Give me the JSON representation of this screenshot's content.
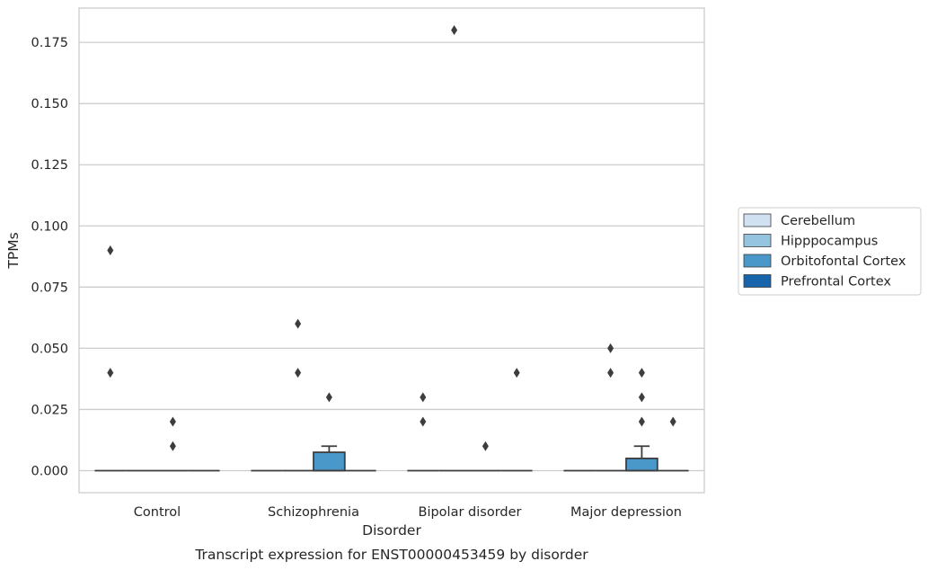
{
  "caption": "Transcript expression for ENST00000453459 by disorder",
  "chart_data": {
    "type": "box",
    "title": "",
    "xlabel": "Disorder",
    "ylabel": "TPMs",
    "ylim": [
      -0.009,
      0.189
    ],
    "yticks": [
      "0.000",
      "0.025",
      "0.050",
      "0.075",
      "0.100",
      "0.125",
      "0.150",
      "0.175"
    ],
    "ytick_values": [
      0,
      0.025,
      0.05,
      0.075,
      0.1,
      0.125,
      0.15,
      0.175
    ],
    "grid": "horizontal",
    "legend_position": "right",
    "categories": [
      "Control",
      "Schizophrenia",
      "Bipolar disorder",
      "Major depression"
    ],
    "series": [
      {
        "name": "Cerebellum",
        "color": "#d0e1f2",
        "boxes": [
          {
            "q1": 0,
            "median": 0,
            "q3": 0,
            "whisker_low": 0,
            "whisker_high": 0,
            "outliers": [
              0.09,
              0.04
            ]
          },
          {
            "q1": 0,
            "median": 0,
            "q3": 0,
            "whisker_low": 0,
            "whisker_high": 0,
            "outliers": []
          },
          {
            "q1": 0,
            "median": 0,
            "q3": 0,
            "whisker_low": 0,
            "whisker_high": 0,
            "outliers": [
              0.03,
              0.02
            ]
          },
          {
            "q1": 0,
            "median": 0,
            "q3": 0,
            "whisker_low": 0,
            "whisker_high": 0,
            "outliers": []
          }
        ]
      },
      {
        "name": "Hipppocampus",
        "color": "#94c4df",
        "boxes": [
          {
            "q1": 0,
            "median": 0,
            "q3": 0,
            "whisker_low": 0,
            "whisker_high": 0,
            "outliers": []
          },
          {
            "q1": 0,
            "median": 0,
            "q3": 0,
            "whisker_low": 0,
            "whisker_high": 0,
            "outliers": [
              0.06,
              0.04
            ]
          },
          {
            "q1": 0,
            "median": 0,
            "q3": 0,
            "whisker_low": 0,
            "whisker_high": 0,
            "outliers": [
              0.18
            ]
          },
          {
            "q1": 0,
            "median": 0,
            "q3": 0,
            "whisker_low": 0,
            "whisker_high": 0,
            "outliers": [
              0.05,
              0.04
            ]
          }
        ]
      },
      {
        "name": "Orbitofontal Cortex",
        "color": "#4a98c9",
        "boxes": [
          {
            "q1": 0,
            "median": 0,
            "q3": 0,
            "whisker_low": 0,
            "whisker_high": 0,
            "outliers": [
              0.02,
              0.01
            ]
          },
          {
            "q1": 0,
            "median": 0,
            "q3": 0.0075,
            "whisker_low": 0,
            "whisker_high": 0.01,
            "outliers": [
              0.03
            ]
          },
          {
            "q1": 0,
            "median": 0,
            "q3": 0,
            "whisker_low": 0,
            "whisker_high": 0,
            "outliers": [
              0.01
            ]
          },
          {
            "q1": 0,
            "median": 0,
            "q3": 0.005,
            "whisker_low": 0,
            "whisker_high": 0.01,
            "outliers": [
              0.04,
              0.03,
              0.02
            ]
          }
        ]
      },
      {
        "name": "Prefrontal Cortex",
        "color": "#1764ab",
        "boxes": [
          {
            "q1": 0,
            "median": 0,
            "q3": 0,
            "whisker_low": 0,
            "whisker_high": 0,
            "outliers": []
          },
          {
            "q1": 0,
            "median": 0,
            "q3": 0,
            "whisker_low": 0,
            "whisker_high": 0,
            "outliers": []
          },
          {
            "q1": 0,
            "median": 0,
            "q3": 0,
            "whisker_low": 0,
            "whisker_high": 0,
            "outliers": [
              0.04
            ]
          },
          {
            "q1": 0,
            "median": 0,
            "q3": 0,
            "whisker_low": 0,
            "whisker_high": 0,
            "outliers": [
              0.02
            ]
          }
        ]
      }
    ]
  }
}
